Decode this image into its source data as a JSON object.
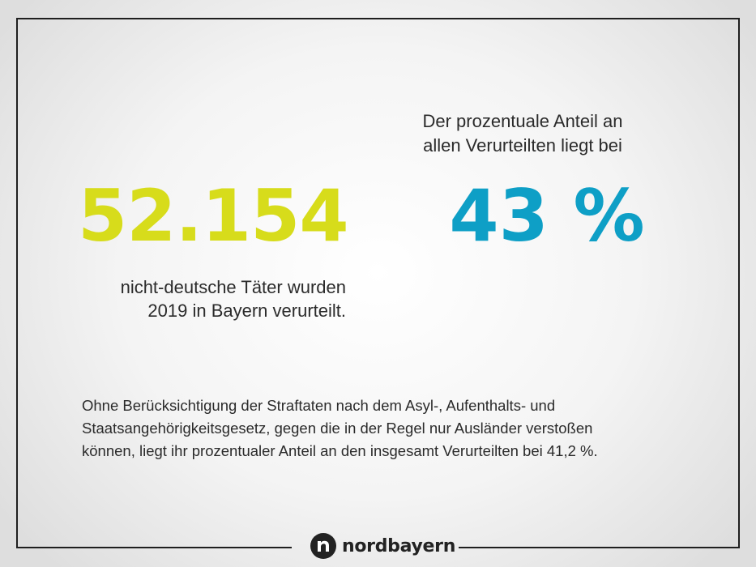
{
  "primary_stat": {
    "value": "52.154",
    "caption_line1": "nicht-deutsche Täter wurden",
    "caption_line2": "2019 in Bayern verurteilt.",
    "color": "#d7dc1b"
  },
  "secondary_stat": {
    "intro_line1": "Der prozentuale Anteil an",
    "intro_line2": "allen Verurteilten liegt bei",
    "value": "43 %",
    "color": "#0e9fc6"
  },
  "footnote": {
    "line1": "Ohne Berücksichtigung der Straftaten nach dem Asyl-, Aufenthalts- und",
    "line2": "Staatsangehörigkeitsgesetz, gegen die in der Regel nur Ausländer verstoßen",
    "line3": "können, liegt ihr prozentualer Anteil an den insgesamt Verurteilten bei 41,2 %."
  },
  "brand": {
    "name": "nordbayern",
    "icon": "nordbayern-logo-icon"
  }
}
